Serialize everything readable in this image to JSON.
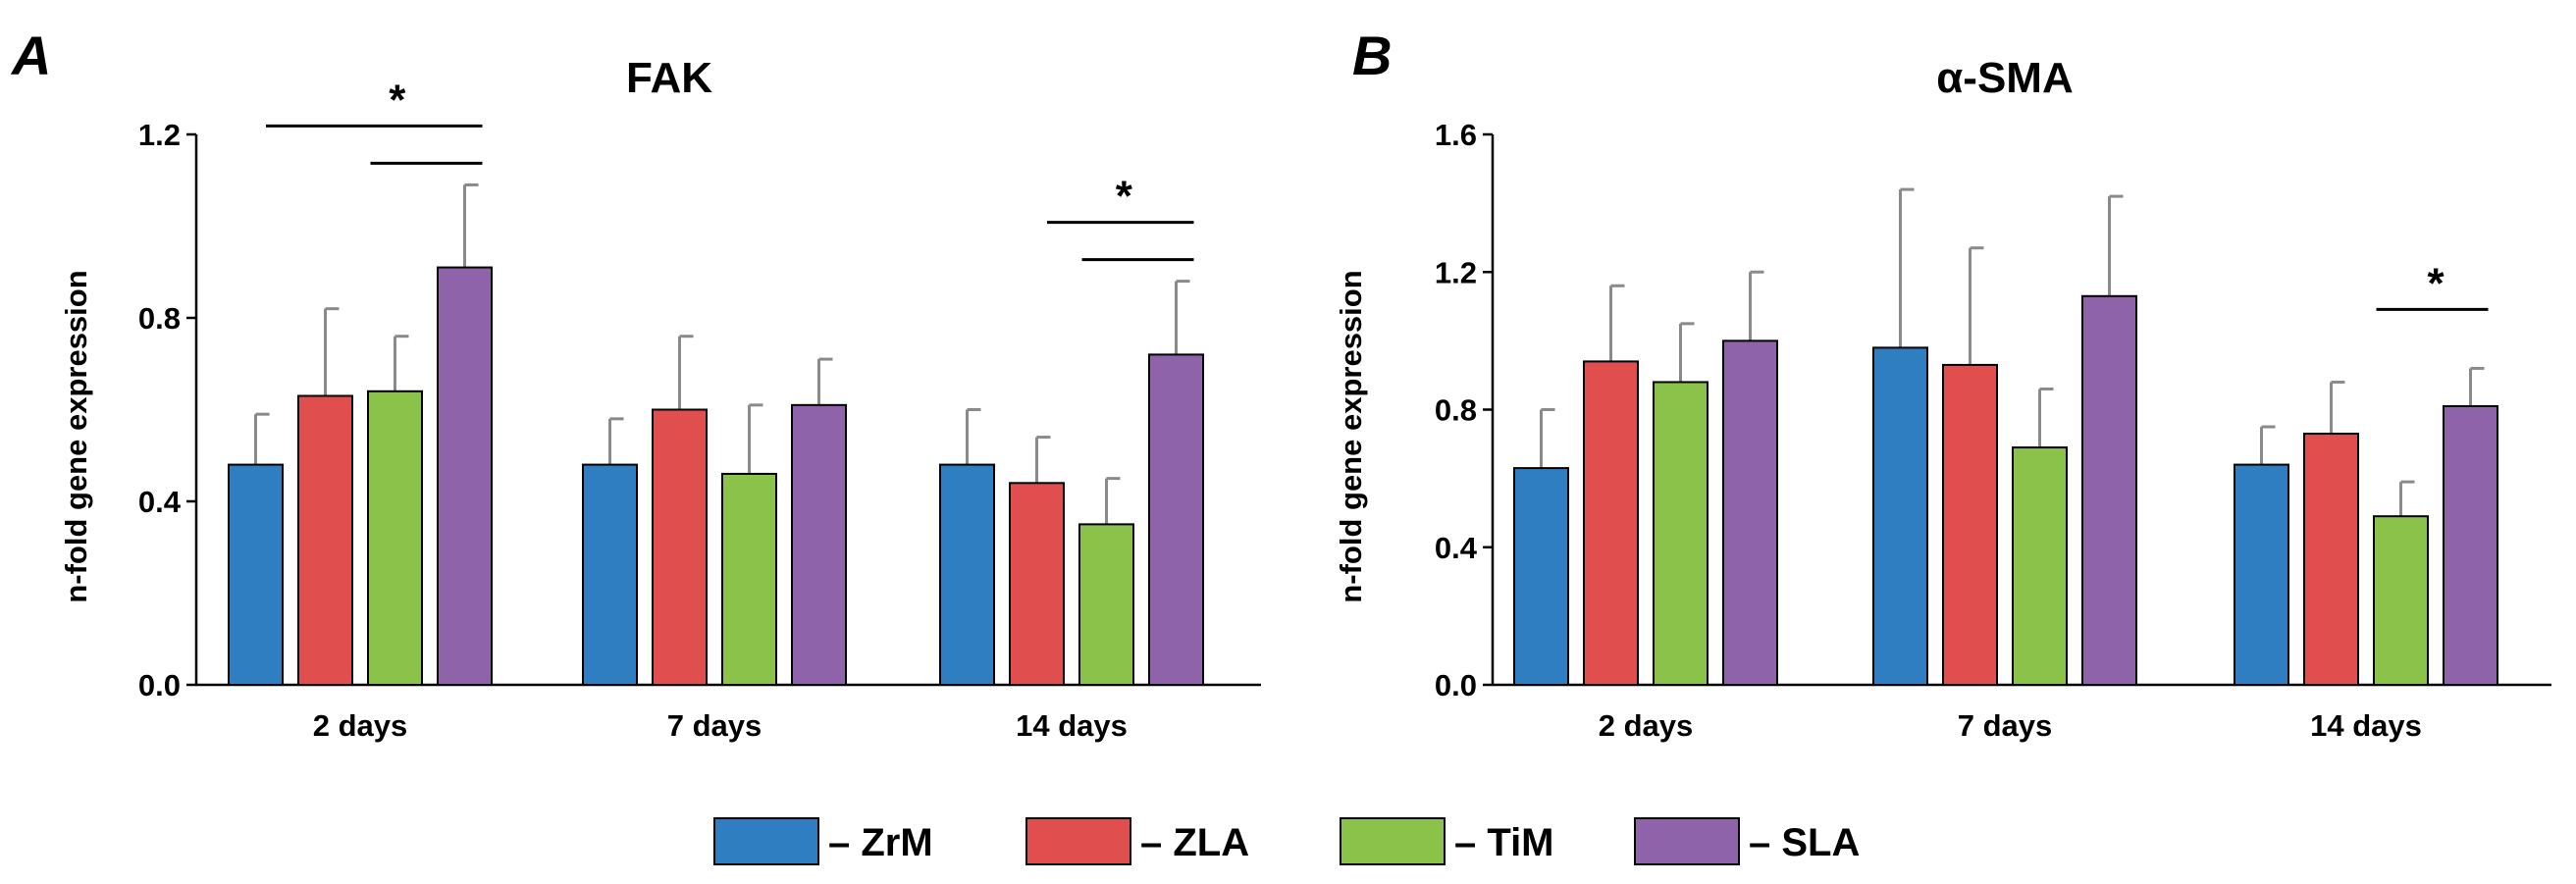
{
  "legend": [
    {
      "label": "– ZrM",
      "color": "#2E7EC1"
    },
    {
      "label": "– ZLA",
      "color": "#E04E4E"
    },
    {
      "label": "– TiM",
      "color": "#8BC34A"
    },
    {
      "label": "– SLA",
      "color": "#8E63A9"
    }
  ],
  "chart_data": [
    {
      "panel": "A",
      "type": "bar",
      "title": "FAK",
      "ylabel": "n-fold gene expression",
      "xlabel": "",
      "ylim": [
        0,
        1.2
      ],
      "yticks": [
        "0.0",
        "0.4",
        "0.8",
        "1.2"
      ],
      "categories": [
        "2 days",
        "7 days",
        "14 days"
      ],
      "series": [
        {
          "name": "ZrM",
          "values": [
            0.48,
            0.48,
            0.48
          ],
          "errors": [
            0.11,
            0.1,
            0.12
          ]
        },
        {
          "name": "ZLA",
          "values": [
            0.63,
            0.6,
            0.44
          ],
          "errors": [
            0.19,
            0.16,
            0.1
          ]
        },
        {
          "name": "TiM",
          "values": [
            0.64,
            0.46,
            0.35
          ],
          "errors": [
            0.12,
            0.15,
            0.1
          ]
        },
        {
          "name": "SLA",
          "values": [
            0.91,
            0.61,
            0.72
          ],
          "errors": [
            0.18,
            0.1,
            0.16
          ]
        }
      ],
      "significance": [
        {
          "label": "*",
          "category": 0,
          "from_series": 0.5,
          "to_series": 3
        },
        {
          "label": "",
          "category": 0,
          "from_series": 2,
          "to_series": 3
        },
        {
          "label": "*",
          "category": 2,
          "from_series": 1.5,
          "to_series": 3
        },
        {
          "label": "",
          "category": 2,
          "from_series": 2,
          "to_series": 3
        }
      ]
    },
    {
      "panel": "B",
      "type": "bar",
      "title": "α-SMA",
      "ylabel": "n-fold gene expression",
      "xlabel": "",
      "ylim": [
        0,
        1.6
      ],
      "yticks": [
        "0.0",
        "0.4",
        "0.8",
        "1.2",
        "1.6"
      ],
      "categories": [
        "2 days",
        "7 days",
        "14 days"
      ],
      "series": [
        {
          "name": "ZrM",
          "values": [
            0.63,
            0.98,
            0.64
          ],
          "errors": [
            0.17,
            0.46,
            0.11
          ]
        },
        {
          "name": "ZLA",
          "values": [
            0.94,
            0.93,
            0.73
          ],
          "errors": [
            0.22,
            0.34,
            0.15
          ]
        },
        {
          "name": "TiM",
          "values": [
            0.88,
            0.69,
            0.49
          ],
          "errors": [
            0.17,
            0.17,
            0.1
          ]
        },
        {
          "name": "SLA",
          "values": [
            1.0,
            1.13,
            0.81
          ],
          "errors": [
            0.2,
            0.29,
            0.11
          ]
        }
      ],
      "significance": [
        {
          "label": "*",
          "category": 2,
          "from_series": 2,
          "to_series": 3
        }
      ]
    }
  ]
}
